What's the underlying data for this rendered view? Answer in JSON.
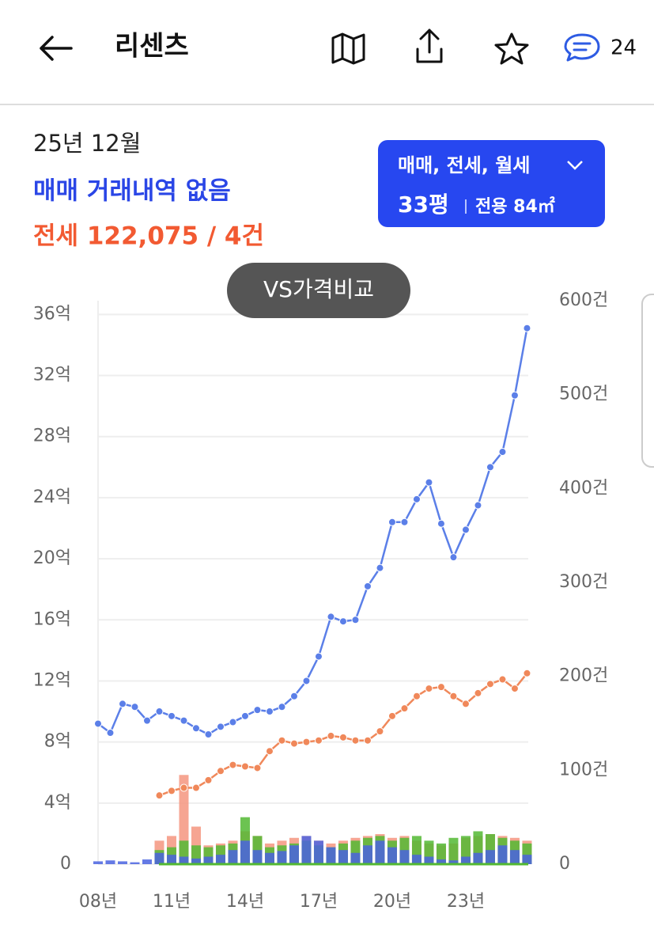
{
  "header": {
    "title": "리센츠",
    "comment_count": 24
  },
  "summary": {
    "date": "25년 12월",
    "sale": "매매 거래내역 없음",
    "lease": "전세 122,075 / 4건"
  },
  "filter": {
    "deal_types": "매매, 전세, 월세",
    "size": "33평",
    "area": "전용 84㎡"
  },
  "compare_button": "VS가격비교",
  "chart_data": {
    "type": "line",
    "x": [
      2008,
      2008.5,
      2009,
      2009.5,
      2010,
      2010.5,
      2011,
      2011.5,
      2012,
      2012.5,
      2013,
      2013.5,
      2014,
      2014.5,
      2015,
      2015.5,
      2016,
      2016.5,
      2017,
      2017.5,
      2018,
      2018.5,
      2019,
      2019.5,
      2020,
      2020.5,
      2021,
      2021.5,
      2022,
      2022.5,
      2023,
      2023.5,
      2024,
      2024.5,
      2025,
      2025.5
    ],
    "series": [
      {
        "type": "bar",
        "axis": "y2",
        "color": "#f4957f",
        "values": [
          null,
          null,
          null,
          null,
          null,
          25,
          30,
          95,
          40,
          20,
          22,
          25,
          35,
          30,
          22,
          25,
          28,
          30,
          25,
          22,
          25,
          28,
          30,
          32,
          28,
          30,
          25,
          22,
          20,
          22,
          28,
          30,
          32,
          30,
          28,
          25
        ]
      },
      {
        "type": "bar",
        "axis": "y2",
        "color": "#52b832",
        "values": [
          null,
          null,
          null,
          null,
          null,
          15,
          18,
          25,
          20,
          18,
          20,
          22,
          50,
          30,
          18,
          20,
          22,
          25,
          20,
          18,
          22,
          25,
          28,
          30,
          25,
          28,
          30,
          25,
          22,
          28,
          30,
          35,
          32,
          28,
          25,
          22
        ]
      },
      {
        "type": "bar",
        "axis": "y2",
        "color": "#4a63e0",
        "values": [
          3,
          4,
          3,
          2,
          5,
          12,
          10,
          8,
          6,
          8,
          10,
          15,
          25,
          15,
          12,
          14,
          20,
          30,
          25,
          18,
          15,
          12,
          20,
          25,
          18,
          15,
          10,
          8,
          5,
          4,
          8,
          12,
          15,
          20,
          15,
          10
        ]
      },
      {
        "type": "line",
        "color": "#f0885a",
        "values": [
          null,
          null,
          null,
          null,
          null,
          4.5,
          4.8,
          5.0,
          5.0,
          5.5,
          6.1,
          6.5,
          6.4,
          6.3,
          7.4,
          8.1,
          7.9,
          8.0,
          8.1,
          8.4,
          8.3,
          8.1,
          8.1,
          8.7,
          9.7,
          10.2,
          11.0,
          11.5,
          11.6,
          11.0,
          10.5,
          11.2,
          11.8,
          12.1,
          11.5,
          12.5
        ]
      },
      {
        "type": "line",
        "color": "#5b7fe8",
        "values": [
          9.2,
          8.6,
          10.5,
          10.3,
          9.4,
          10.0,
          9.7,
          9.4,
          8.9,
          8.5,
          9.0,
          9.3,
          9.7,
          10.1,
          10.0,
          10.3,
          11.0,
          12.0,
          13.6,
          16.2,
          15.9,
          16.0,
          18.2,
          19.4,
          22.4,
          22.4,
          23.9,
          25.0,
          22.3,
          20.1,
          21.9,
          23.5,
          26.0,
          27.0,
          30.7,
          35.1
        ]
      }
    ],
    "xlim": [
      2008,
      2025.55
    ],
    "xticks": [
      {
        "value": 2008,
        "label": "08년"
      },
      {
        "value": 2011,
        "label": "11년"
      },
      {
        "value": 2014,
        "label": "14년"
      },
      {
        "value": 2017,
        "label": "17년"
      },
      {
        "value": 2020,
        "label": "20년"
      },
      {
        "value": 2023,
        "label": "23년"
      }
    ],
    "ylim": [
      0,
      36.9
    ],
    "yticks": [
      0,
      {
        "value": 4,
        "label": "4억"
      },
      {
        "value": 8,
        "label": "8억"
      },
      {
        "value": 12,
        "label": "12억"
      },
      {
        "value": 16,
        "label": "16억"
      },
      {
        "value": 20,
        "label": "20억"
      },
      {
        "value": 24,
        "label": "24억"
      },
      {
        "value": 28,
        "label": "28억"
      },
      {
        "value": 32,
        "label": "32억"
      },
      {
        "value": 36,
        "label": "36억"
      }
    ],
    "y2lim": [
      0,
      600
    ],
    "y2ticks": [
      0,
      {
        "value": 100,
        "label": "100건"
      },
      {
        "value": 200,
        "label": "200건"
      },
      {
        "value": 300,
        "label": "300건"
      },
      {
        "value": 400,
        "label": "400건"
      },
      {
        "value": 500,
        "label": "500건"
      },
      {
        "value": 600,
        "label": "600건"
      }
    ],
    "grid": true
  }
}
